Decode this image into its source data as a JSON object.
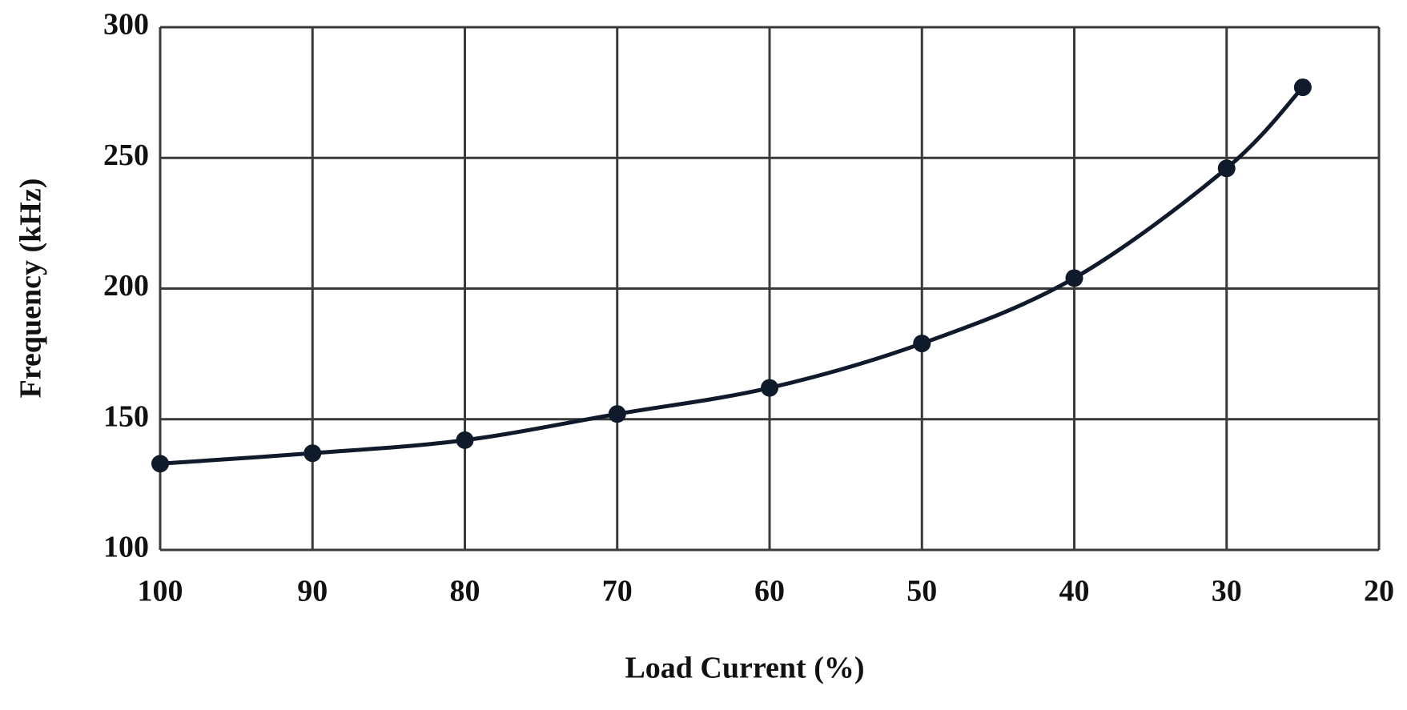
{
  "chart_data": {
    "type": "line",
    "x_label": "Load Current (%)",
    "y_label": "Frequency (kHz)",
    "x": [
      100,
      90,
      80,
      70,
      60,
      50,
      40,
      30,
      25
    ],
    "series": [
      {
        "color": "#0f1a2b",
        "values": [
          133,
          137,
          142,
          152,
          162,
          179,
          204,
          246,
          277
        ]
      }
    ],
    "xlim": [
      100,
      20
    ],
    "xticks": [
      100,
      90,
      80,
      70,
      60,
      50,
      40,
      30,
      20
    ],
    "ylim": [
      100,
      300
    ],
    "yticks": [
      100,
      150,
      200,
      250,
      300
    ],
    "grid": true
  }
}
